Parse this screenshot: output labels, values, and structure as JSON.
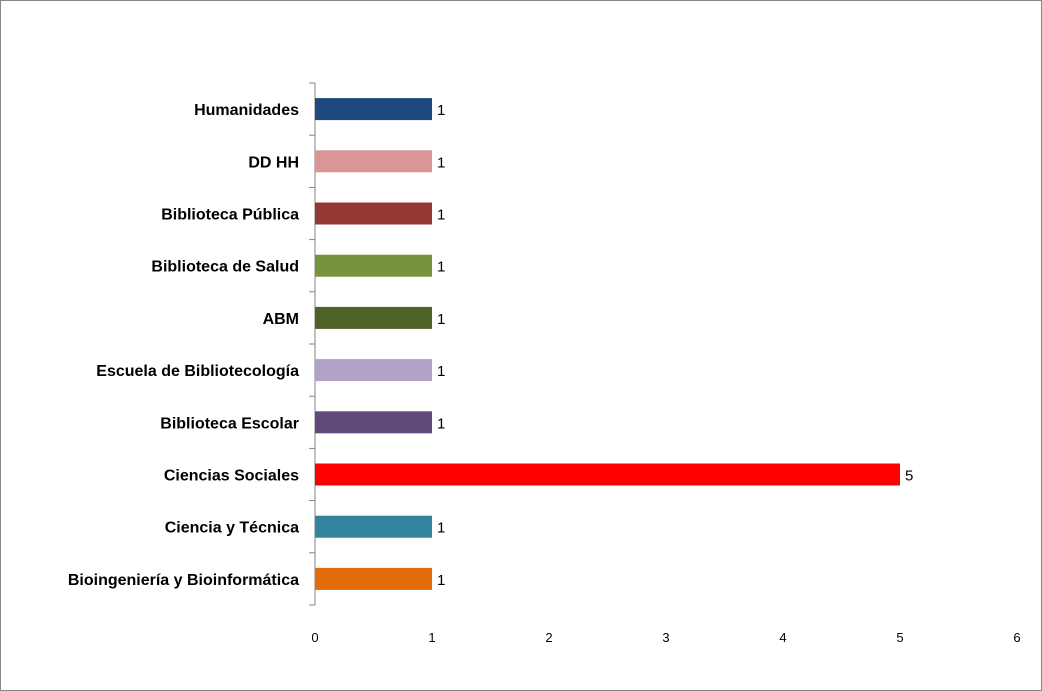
{
  "chart_data": {
    "type": "bar",
    "orientation": "horizontal",
    "categories": [
      "Bioingeniería y Bioinformática",
      "Ciencia y Técnica",
      "Ciencias Sociales",
      "Biblioteca Escolar",
      "Escuela de Bibliotecología",
      "ABM",
      "Biblioteca de Salud",
      "Biblioteca Pública",
      "DD HH",
      "Humanidades"
    ],
    "values": [
      1,
      1,
      5,
      1,
      1,
      1,
      1,
      1,
      1,
      1
    ],
    "colors": [
      "#E36C0A",
      "#31849B",
      "#FF0000",
      "#604A7B",
      "#B3A2C7",
      "#4F6228",
      "#77933C",
      "#953735",
      "#D99694",
      "#1F497D"
    ],
    "xlim": [
      0,
      6
    ],
    "xticks": [
      0,
      1,
      2,
      3,
      4,
      5,
      6
    ],
    "data_labels": true,
    "grid": false,
    "legend": "none",
    "title": "",
    "xlabel": "",
    "ylabel": ""
  }
}
